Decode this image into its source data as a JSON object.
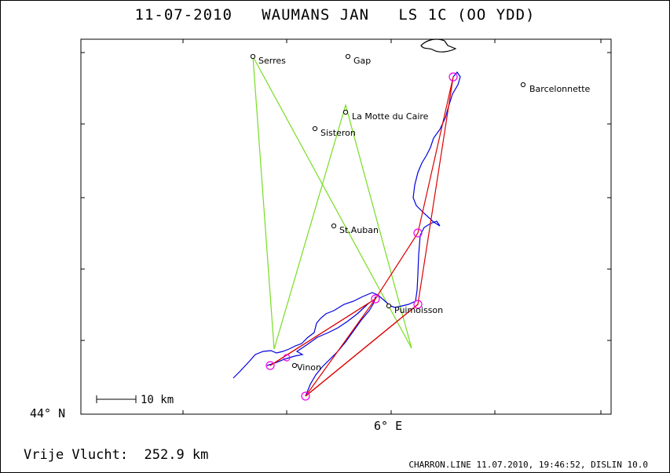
{
  "title": "11-07-2010   WAUMANS JAN   LS 1C (OO YDD)",
  "axes": {
    "lat_label": "44° N",
    "lon_label": "6° E"
  },
  "scale_bar": {
    "label": "10 km"
  },
  "footer": {
    "distance": "Vrije Vlucht:  252.9 km",
    "credits": "CHARRON.LINE 11.07.2010, 19:46:52, DISLIN 10.0"
  },
  "places": [
    {
      "name": "Serres"
    },
    {
      "name": "Gap"
    },
    {
      "name": "Barcelonnette"
    },
    {
      "name": "La Motte du Caire"
    },
    {
      "name": "Sisteron"
    },
    {
      "name": "St.Auban"
    },
    {
      "name": "Puimoisson"
    },
    {
      "name": "Vinon"
    }
  ],
  "colors": {
    "track": "#0000dd",
    "task_line": "#77dd22",
    "flight_line": "#dd0000",
    "turnpoint": "#ee00ee",
    "frame": "#000000"
  }
}
